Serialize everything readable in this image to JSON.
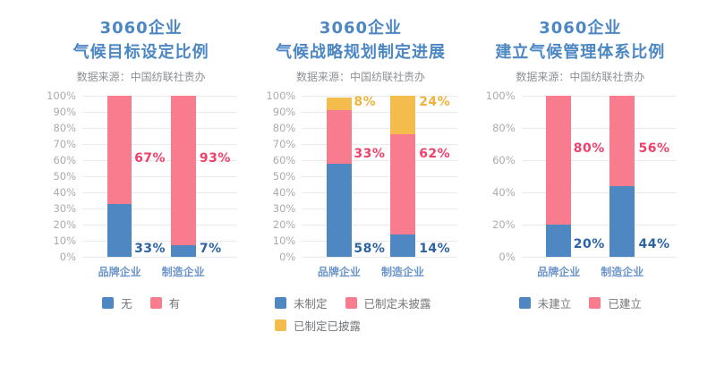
{
  "colors": {
    "background": "#FFFFFF",
    "blue": "#4E87C1",
    "pink": "#F97C8E",
    "yellow": "#F3BC4D",
    "label_blue": "#2C63A5",
    "label_pink": "#F0416B",
    "label_yellow": "#F2B23C",
    "title_blue": "#4C87C3",
    "xlabel_blue": "#6C95C9",
    "tick_gray": "#A9ABAE",
    "legend_gray": "#717579",
    "source_gray": "#8C9094",
    "gridline": "#E9EAEB"
  },
  "chart_data": [
    {
      "type": "bar",
      "stacked": true,
      "title_lines": [
        "3060企业",
        "气候目标设定比例"
      ],
      "source": "数据来源：中国纺联社责办",
      "categories": [
        "品牌企业",
        "制造企业"
      ],
      "y_ticks": [
        "100%",
        "90%",
        "80%",
        "70%",
        "60%",
        "50%",
        "40%",
        "30%",
        "20%",
        "10%",
        "0%"
      ],
      "ylim": [
        0,
        100
      ],
      "grid": true,
      "legend_position": "bottom",
      "series": [
        {
          "name": "无",
          "color_key": "blue",
          "label_color_key": "label_blue",
          "values": [
            33,
            7
          ],
          "label_y": 5
        },
        {
          "name": "有",
          "color_key": "pink",
          "label_color_key": "label_pink",
          "values": [
            67,
            93
          ],
          "label_y": 61
        }
      ]
    },
    {
      "type": "bar",
      "stacked": true,
      "title_lines": [
        "3060企业",
        "气候战略规划制定进展"
      ],
      "source": "数据来源：中国纺联社责办",
      "categories": [
        "品牌企业",
        "制造企业"
      ],
      "y_ticks": [
        "100%",
        "90%",
        "80%",
        "70%",
        "60%",
        "50%",
        "40%",
        "30%",
        "20%",
        "10%",
        "0%"
      ],
      "ylim": [
        0,
        100
      ],
      "grid": true,
      "legend_position": "bottom",
      "series": [
        {
          "name": "未制定",
          "color_key": "blue",
          "label_color_key": "label_blue",
          "values": [
            58,
            14
          ],
          "label_y": 5
        },
        {
          "name": "已制定未披露",
          "color_key": "pink",
          "label_color_key": "label_pink",
          "values": [
            33,
            62
          ],
          "label_y": 64
        },
        {
          "name": "已制定已披露",
          "color_key": "yellow",
          "label_color_key": "label_yellow",
          "values": [
            8,
            24
          ],
          "label_y": 96
        }
      ]
    },
    {
      "type": "bar",
      "stacked": true,
      "title_lines": [
        "3060企业",
        "建立气候管理体系比例"
      ],
      "source": "数据来源：中国纺联社责办",
      "categories": [
        "品牌企业",
        "制造企业"
      ],
      "y_ticks": [
        "100%",
        "80%",
        "60%",
        "40%",
        "20%",
        "0%"
      ],
      "ylim": [
        0,
        100
      ],
      "grid": true,
      "legend_position": "bottom",
      "series": [
        {
          "name": "未建立",
          "color_key": "blue",
          "label_color_key": "label_blue",
          "values": [
            20,
            44
          ],
          "label_y": 8
        },
        {
          "name": "已建立",
          "color_key": "pink",
          "label_color_key": "label_pink",
          "values": [
            80,
            56
          ],
          "label_y": 67
        }
      ]
    }
  ]
}
